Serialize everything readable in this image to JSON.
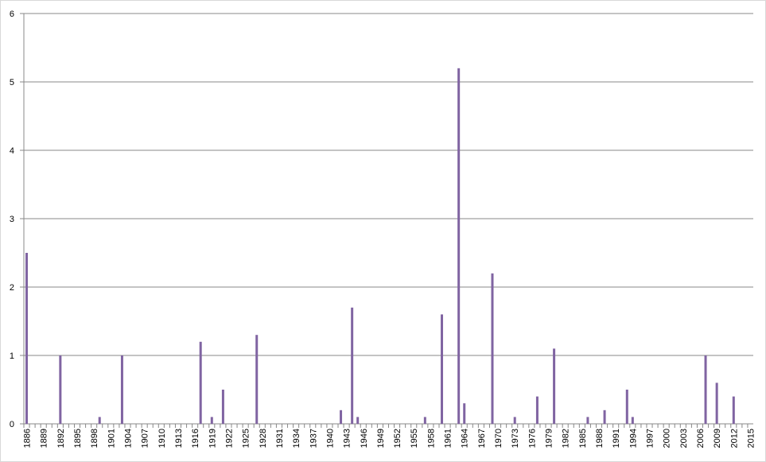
{
  "chart_data": {
    "type": "bar",
    "categories": [
      "1886",
      null,
      null,
      "1889",
      null,
      null,
      "1892",
      null,
      null,
      "1895",
      null,
      null,
      "1898",
      null,
      null,
      "1901",
      null,
      null,
      "1904",
      null,
      null,
      "1907",
      null,
      null,
      "1910",
      null,
      null,
      "1913",
      null,
      null,
      "1916",
      null,
      null,
      "1919",
      null,
      null,
      "1922",
      null,
      null,
      "1925",
      null,
      null,
      "1928",
      null,
      null,
      "1931",
      null,
      null,
      "1934",
      null,
      null,
      "1937",
      null,
      null,
      "1940",
      null,
      null,
      "1943",
      null,
      null,
      "1946",
      null,
      null,
      "1949",
      null,
      null,
      "1952",
      null,
      null,
      "1955",
      null,
      null,
      "1958",
      null,
      null,
      "1961",
      null,
      null,
      "1964",
      null,
      null,
      "1967",
      null,
      null,
      "1970",
      null,
      null,
      "1973",
      null,
      null,
      "1976",
      null,
      null,
      "1979",
      null,
      null,
      "1982",
      null,
      null,
      "1985",
      null,
      null,
      "1988",
      null,
      null,
      "1991",
      null,
      null,
      "1994",
      null,
      null,
      "1997",
      null,
      null,
      "2000",
      null,
      null,
      "2003",
      null,
      null,
      "2006",
      null,
      null,
      "2009",
      null,
      null,
      "2012",
      null,
      null,
      "2015"
    ],
    "values": [
      2.5,
      0,
      0,
      0,
      0,
      0,
      1,
      0,
      0,
      0,
      0,
      0,
      0,
      0.1,
      0,
      0,
      0,
      1,
      0,
      0,
      0,
      0,
      0,
      0,
      0,
      0,
      0,
      0,
      0,
      0,
      0,
      1.2,
      0,
      0.1,
      0,
      0.5,
      0,
      0,
      0,
      0,
      0,
      1.3,
      0,
      0,
      0,
      0,
      0,
      0,
      0,
      0,
      0,
      0,
      0,
      0,
      0,
      0,
      0.2,
      0,
      1.7,
      0.1,
      0,
      0,
      0,
      0,
      0,
      0,
      0,
      0,
      0,
      0,
      0,
      0.1,
      0,
      0,
      1.6,
      0,
      0,
      5.2,
      0.3,
      0,
      0,
      0,
      0,
      2.2,
      0,
      0,
      0,
      0.1,
      0,
      0,
      0,
      0.4,
      0,
      0,
      1.1,
      0,
      0,
      0,
      0,
      0,
      0.1,
      0,
      0,
      0.2,
      0,
      0,
      0,
      0.5,
      0.1,
      0,
      0,
      0,
      0,
      0,
      0,
      0,
      0,
      0,
      0,
      0,
      0,
      1,
      0,
      0.6,
      0,
      0,
      0.4,
      0,
      0,
      0
    ],
    "color": "#8064a2",
    "ylim": [
      0,
      6
    ],
    "yticks": [
      0,
      1,
      2,
      3,
      4,
      5,
      6
    ],
    "grid": true
  }
}
